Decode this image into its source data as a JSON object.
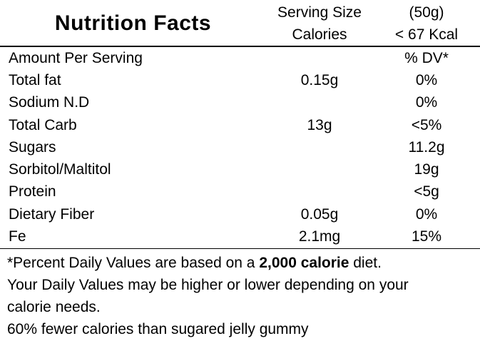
{
  "header": {
    "title": "Nutrition Facts",
    "serving_size_label": "Serving Size",
    "serving_size_value": "(50g)",
    "calories_label": "Calories",
    "calories_value": "< 67 Kcal"
  },
  "table": {
    "amount_header": "Amount Per Serving",
    "dv_header": "% DV*",
    "rows": [
      {
        "label": "Total fat",
        "amount": "0.15g",
        "dv": "0%"
      },
      {
        "label": "Sodium N.D",
        "amount": "",
        "dv": "0%"
      },
      {
        "label": "Total Carb",
        "amount": "13g",
        "dv": "<5%"
      },
      {
        "label": "Sugars",
        "amount": "",
        "dv": "11.2g"
      },
      {
        "label": "Sorbitol/Maltitol",
        "amount": "",
        "dv": "19g"
      },
      {
        "label": "Protein",
        "amount": "",
        "dv": "<5g"
      },
      {
        "label": "Dietary Fiber",
        "amount": "0.05g",
        "dv": "0%"
      },
      {
        "label": "Fe",
        "amount": "2.1mg",
        "dv": "15%"
      }
    ]
  },
  "footnote": {
    "line1_prefix": "*Percent Daily Values are based on a ",
    "line1_bold": "2,000 calorie",
    "line1_suffix": " diet.",
    "line2": "Your Daily Values may be higher or lower depending on your",
    "line3": "calorie needs.",
    "line4": "60% fewer calories than sugared jelly gummy"
  },
  "colors": {
    "text": "#000000",
    "background": "#ffffff",
    "divider": "#000000"
  }
}
